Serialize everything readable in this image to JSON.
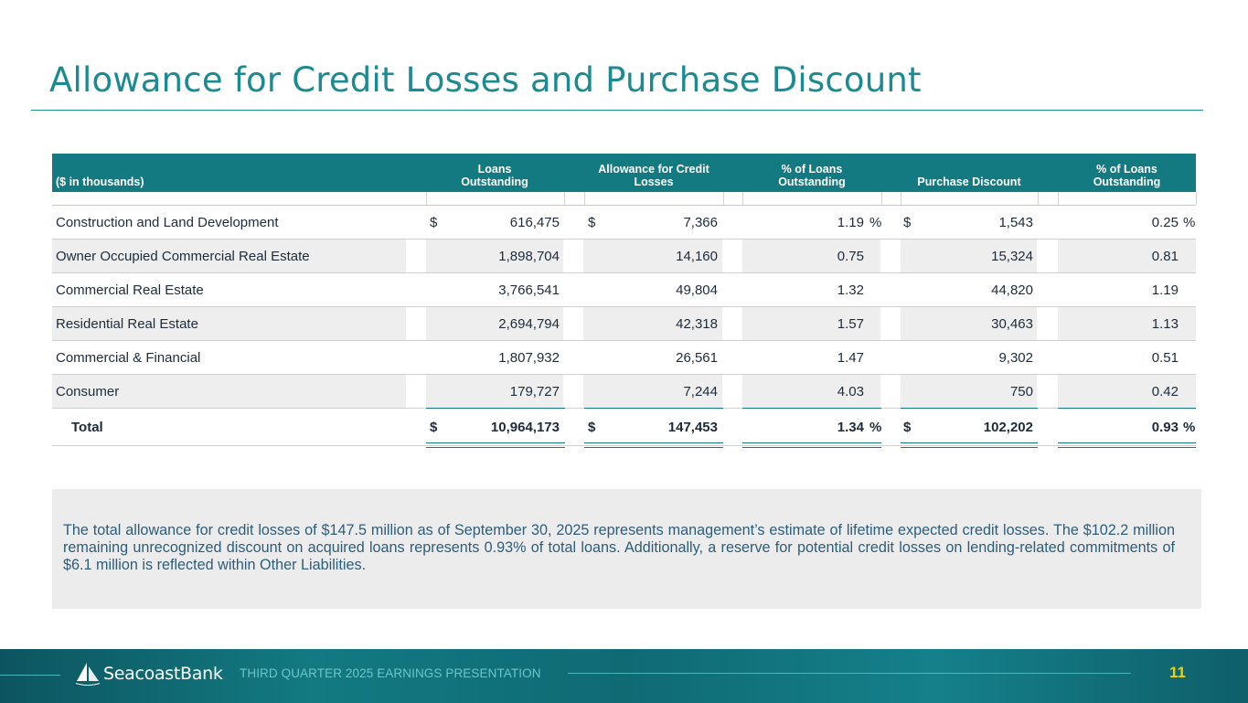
{
  "title": "Allowance for Credit Losses and Purchase Discount",
  "table": {
    "headers": {
      "category": "($ in thousands)",
      "loans": "Loans\nOutstanding",
      "allowance": "Allowance for Credit\nLosses",
      "pct_allowance": "% of Loans\nOutstanding",
      "discount": "Purchase Discount",
      "pct_discount": "% of Loans\nOutstanding"
    },
    "currency_symbol": "$",
    "percent_symbol": "%",
    "rows": [
      {
        "label": "Construction and Land Development",
        "loans": "616,475",
        "allowance": "7,366",
        "pct_allowance": "1.19",
        "discount": "1,543",
        "pct_discount": "0.25"
      },
      {
        "label": "Owner Occupied Commercial Real Estate",
        "loans": "1,898,704",
        "allowance": "14,160",
        "pct_allowance": "0.75",
        "discount": "15,324",
        "pct_discount": "0.81"
      },
      {
        "label": "Commercial Real Estate",
        "loans": "3,766,541",
        "allowance": "49,804",
        "pct_allowance": "1.32",
        "discount": "44,820",
        "pct_discount": "1.19"
      },
      {
        "label": "Residential Real Estate",
        "loans": "2,694,794",
        "allowance": "42,318",
        "pct_allowance": "1.57",
        "discount": "30,463",
        "pct_discount": "1.13"
      },
      {
        "label": "Commercial & Financial",
        "loans": "1,807,932",
        "allowance": "26,561",
        "pct_allowance": "1.47",
        "discount": "9,302",
        "pct_discount": "0.51"
      },
      {
        "label": "Consumer",
        "loans": "179,727",
        "allowance": "7,244",
        "pct_allowance": "4.03",
        "discount": "750",
        "pct_discount": "0.42"
      }
    ],
    "total": {
      "label": "Total",
      "loans": "10,964,173",
      "allowance": "147,453",
      "pct_allowance": "1.34",
      "discount": "102,202",
      "pct_discount": "0.93"
    }
  },
  "note": "The total allowance for credit losses of $147.5 million as of September 30, 2025 represents management’s estimate of lifetime expected credit losses. The $102.2 million remaining unrecognized discount on acquired loans represents 0.93% of total loans. Additionally, a reserve for potential credit losses on lending-related commitments of $6.1 million is reflected within Other Liabilities.",
  "footer": {
    "logo_text": "SeacoastBank",
    "caption": "THIRD QUARTER 2025 EARNINGS PRESENTATION",
    "page_number": "11"
  },
  "colors": {
    "title": "#1a8a93",
    "header_bg": "#137a82",
    "page_number": "#f2d100"
  }
}
